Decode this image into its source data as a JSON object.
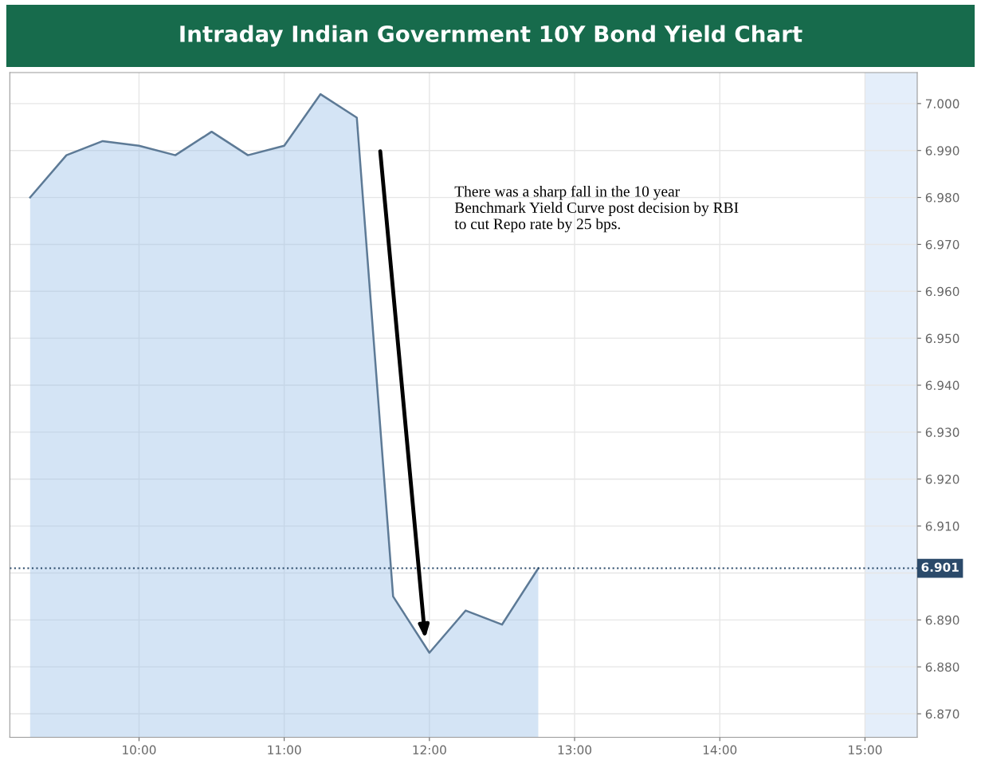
{
  "chart_data": {
    "type": "area",
    "title": "Intraday Indian Government 10Y Bond Yield Chart",
    "x": [
      9.25,
      9.5,
      9.75,
      10.0,
      10.25,
      10.5,
      10.75,
      11.0,
      11.25,
      11.5,
      11.75,
      12.0,
      12.25,
      12.5,
      12.75
    ],
    "series": [
      {
        "color": "#5d7a96",
        "values": [
          6.98,
          6.989,
          6.992,
          6.991,
          6.989,
          6.994,
          6.989,
          6.991,
          7.002,
          6.997,
          6.895,
          6.883,
          6.892,
          6.889,
          6.901
        ]
      }
    ],
    "xlim": [
      9.11,
      15.36
    ],
    "xticks": [
      {
        "value": 10,
        "label": "10:00"
      },
      {
        "value": 11,
        "label": "11:00"
      },
      {
        "value": 12,
        "label": "12:00"
      },
      {
        "value": 13,
        "label": "13:00"
      },
      {
        "value": 14,
        "label": "14:00"
      },
      {
        "value": 15,
        "label": "15:00"
      }
    ],
    "ylim": [
      6.865,
      7.0066
    ],
    "yticks": [
      {
        "value": 6.87,
        "label": "6.870"
      },
      {
        "value": 6.88,
        "label": "6.880"
      },
      {
        "value": 6.89,
        "label": "6.890"
      },
      {
        "value": 6.9,
        "label": null
      },
      {
        "value": 6.91,
        "label": "6.910"
      },
      {
        "value": 6.92,
        "label": "6.920"
      },
      {
        "value": 6.93,
        "label": "6.930"
      },
      {
        "value": 6.94,
        "label": "6.940"
      },
      {
        "value": 6.95,
        "label": "6.950"
      },
      {
        "value": 6.96,
        "label": "6.960"
      },
      {
        "value": 6.97,
        "label": "6.970"
      },
      {
        "value": 6.98,
        "label": "6.980"
      },
      {
        "value": 6.99,
        "label": "6.990"
      },
      {
        "value": 7.0,
        "label": "7.000"
      }
    ],
    "ref_lines": [
      {
        "axis": "y",
        "value": 6.901,
        "label": "6.901",
        "color": "#2b4a6a",
        "line_style": "dotted"
      }
    ],
    "bands": [
      {
        "axis": "x",
        "from": 15.0,
        "to": 15.36,
        "color": "#e4eefa"
      }
    ],
    "annotations": [
      "There was a sharp fall in the 10 year Benchmark Yield Curve post decision by RBI to cut Repo rate by 25 bps."
    ],
    "grid": true
  }
}
